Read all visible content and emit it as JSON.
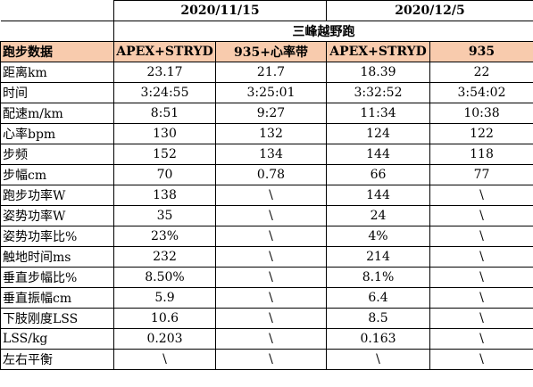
{
  "dates": [
    "2020/11/15",
    "2020/12/5"
  ],
  "venue": "三峰越野跑",
  "header": {
    "label": "跑步数据",
    "columns": [
      "APEX+STRYD",
      "935+心率带",
      "APEX+STRYD",
      "935"
    ]
  },
  "rows": [
    {
      "label": "距离km",
      "values": [
        "23.17",
        "21.7",
        "18.39",
        "22"
      ]
    },
    {
      "label": "时间",
      "values": [
        "3:24:55",
        "3:25:01",
        "3:32:52",
        "3:54:02"
      ]
    },
    {
      "label": "配速m/km",
      "values": [
        "8:51",
        "9:27",
        "11:34",
        "10:38"
      ]
    },
    {
      "label": "心率bpm",
      "values": [
        "130",
        "132",
        "124",
        "122"
      ]
    },
    {
      "label": "步频",
      "values": [
        "152",
        "134",
        "144",
        "118"
      ]
    },
    {
      "label": "步幅cm",
      "values": [
        "70",
        "0.78",
        "66",
        "77"
      ]
    },
    {
      "label": "跑步功率W",
      "values": [
        "138",
        "\\",
        "144",
        "\\"
      ]
    },
    {
      "label": "姿势功率W",
      "values": [
        "35",
        "\\",
        "24",
        "\\"
      ]
    },
    {
      "label": "姿势功率比%",
      "values": [
        "23%",
        "\\",
        "4%",
        "\\"
      ]
    },
    {
      "label": "触地时间ms",
      "values": [
        "232",
        "\\",
        "214",
        "\\"
      ]
    },
    {
      "label": "垂直步幅比%",
      "values": [
        "8.50%",
        "\\",
        "8.1%",
        "\\"
      ]
    },
    {
      "label": "垂直振幅cm",
      "values": [
        "5.9",
        "\\",
        "6.4",
        "\\"
      ]
    },
    {
      "label": "下肢刚度LSS",
      "values": [
        "10.6",
        "\\",
        "8.5",
        "\\"
      ]
    },
    {
      "label": "LSS/kg",
      "values": [
        "0.203",
        "\\",
        "0.163",
        "\\"
      ]
    },
    {
      "label": "左右平衡",
      "values": [
        "\\",
        "\\",
        "\\",
        "\\"
      ]
    }
  ],
  "colors": {
    "header_fill": "#f8cbad",
    "border": "#000000"
  }
}
